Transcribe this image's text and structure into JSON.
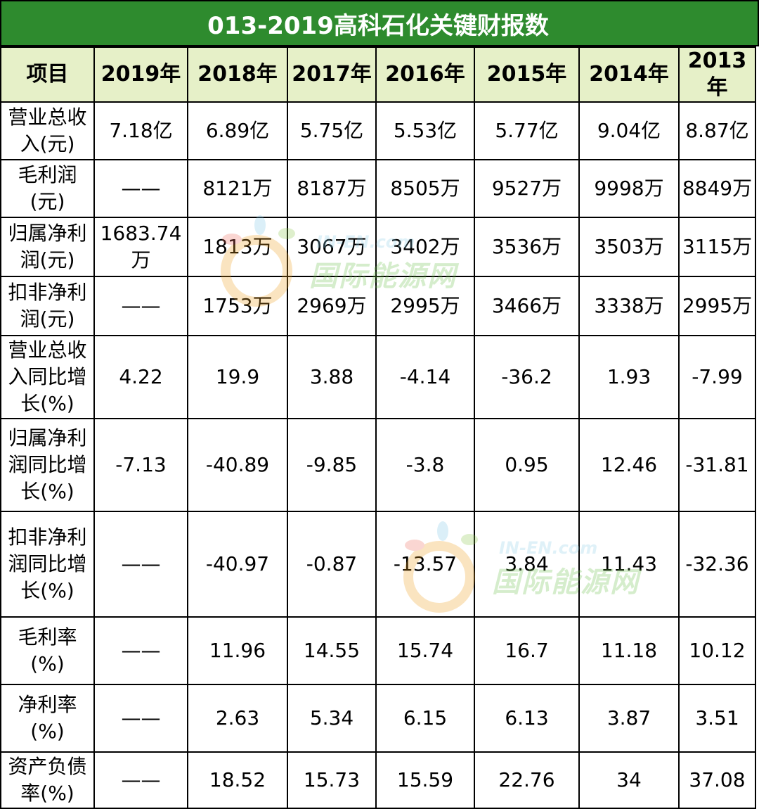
{
  "title": "013-2019高科石化关键财报数",
  "headers": [
    "项目",
    "2019年",
    "2018年",
    "2017年",
    "2016年",
    "2015年",
    "2014年",
    "2013年"
  ],
  "rows": [
    {
      "label": [
        "营业总收",
        "入(元)"
      ],
      "values": [
        "7.18亿",
        "6.89亿",
        "5.75亿",
        "5.53亿",
        "5.77亿",
        "9.04亿",
        "8.87亿"
      ]
    },
    {
      "label": [
        "毛利润",
        "(元)"
      ],
      "values": [
        "——",
        "8121万",
        "8187万",
        "8505万",
        "9527万",
        "9998万",
        "8849万"
      ]
    },
    {
      "label": [
        "归属净利",
        "润(元)"
      ],
      "values": [
        "1683.74万",
        "1813万",
        "3067万",
        "3402万",
        "3536万",
        "3503万",
        "3115万"
      ]
    },
    {
      "label": [
        "扣非净利",
        "润(元)"
      ],
      "values": [
        "——",
        "1753万",
        "2969万",
        "2995万",
        "3466万",
        "3338万",
        "2995万"
      ]
    },
    {
      "label": [
        "营业总收",
        "入同比增",
        "长(%)"
      ],
      "values": [
        "4.22",
        "19.9",
        "3.88",
        "-4.14",
        "-36.2",
        "1.93",
        "-7.99"
      ]
    },
    {
      "label": [
        "归属净利",
        "润同比增",
        "长(%)"
      ],
      "values": [
        "-7.13",
        "-40.89",
        "-9.85",
        "-3.8",
        "0.95",
        "12.46",
        "-31.81"
      ]
    },
    {
      "label": [
        "扣非净利",
        "润同比增",
        "长(%)"
      ],
      "values": [
        "——",
        "-40.97",
        "-0.87",
        "-13.57",
        "3.84",
        "11.43",
        "-32.36"
      ]
    },
    {
      "label": [
        "毛利率",
        "(%)"
      ],
      "values": [
        "——",
        "11.96",
        "14.55",
        "15.74",
        "16.7",
        "11.18",
        "10.12"
      ]
    },
    {
      "label": [
        "净利率",
        "(%)"
      ],
      "values": [
        "——",
        "2.63",
        "5.34",
        "6.15",
        "6.13",
        "3.87",
        "3.51"
      ]
    },
    {
      "label": [
        "资产负债",
        "率(%)"
      ],
      "values": [
        "——",
        "18.52",
        "15.73",
        "15.59",
        "22.76",
        "34",
        "37.08"
      ]
    }
  ],
  "watermark": {
    "text": "国际能源网",
    "sub": "IN-EN.com"
  },
  "colors": {
    "title_bg": "#2e8b2e",
    "header_bg": "#e6f0c8"
  }
}
